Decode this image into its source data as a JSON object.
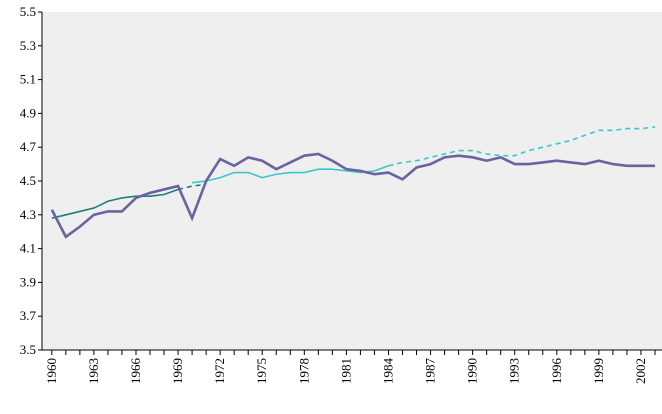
{
  "chart_data": {
    "type": "line",
    "x": [
      1960,
      1961,
      1962,
      1963,
      1964,
      1965,
      1966,
      1967,
      1968,
      1969,
      1970,
      1971,
      1972,
      1973,
      1974,
      1975,
      1976,
      1977,
      1978,
      1979,
      1980,
      1981,
      1982,
      1983,
      1984,
      1985,
      1986,
      1987,
      1988,
      1989,
      1990,
      1991,
      1992,
      1993,
      1994,
      1995,
      1996,
      1997,
      1998,
      1999,
      2000,
      2001,
      2002,
      2003
    ],
    "series": [
      {
        "color": "#1a7f7a",
        "dashed": false,
        "width": 1.6,
        "values": [
          4.28,
          4.3,
          4.32,
          4.34,
          4.38,
          4.4,
          4.41,
          4.41,
          4.42,
          4.45,
          null,
          null,
          null,
          null,
          null,
          null,
          null,
          null,
          null,
          null,
          null,
          null,
          null,
          null,
          null,
          null,
          null,
          null,
          null,
          null,
          null,
          null,
          null,
          null,
          null,
          null,
          null,
          null,
          null,
          null,
          null,
          null,
          null,
          null
        ]
      },
      {
        "color": "#1a7f7a",
        "dashed": true,
        "width": 1.6,
        "values": [
          null,
          null,
          null,
          null,
          null,
          null,
          null,
          null,
          null,
          4.45,
          4.47,
          4.48,
          null,
          null,
          null,
          null,
          null,
          null,
          null,
          null,
          null,
          null,
          null,
          null,
          null,
          null,
          null,
          null,
          null,
          null,
          null,
          null,
          null,
          null,
          null,
          null,
          null,
          null,
          null,
          null,
          null,
          null,
          null,
          null
        ]
      },
      {
        "color": "#3cc8c8",
        "dashed": false,
        "width": 1.6,
        "values": [
          null,
          null,
          null,
          null,
          null,
          null,
          null,
          null,
          null,
          null,
          4.49,
          4.5,
          4.52,
          4.55,
          4.55,
          4.52,
          4.54,
          4.55,
          4.55,
          4.57,
          4.57,
          4.56,
          4.55,
          4.56,
          4.59,
          null,
          null,
          null,
          null,
          null,
          null,
          null,
          null,
          null,
          null,
          null,
          null,
          null,
          null,
          null,
          null,
          null,
          null,
          null
        ]
      },
      {
        "color": "#3cc8c8",
        "dashed": true,
        "width": 1.6,
        "values": [
          null,
          null,
          null,
          null,
          null,
          null,
          null,
          null,
          null,
          null,
          null,
          null,
          null,
          null,
          null,
          null,
          null,
          null,
          null,
          null,
          null,
          null,
          null,
          null,
          4.59,
          4.61,
          4.62,
          4.64,
          4.66,
          4.68,
          4.68,
          4.66,
          4.65,
          4.65,
          4.68,
          4.7,
          4.72,
          4.74,
          4.77,
          4.8,
          4.8,
          4.81,
          4.81,
          4.82
        ]
      },
      {
        "color": "#6a63a0",
        "dashed": false,
        "width": 2.6,
        "values": [
          4.33,
          4.17,
          4.23,
          4.3,
          4.32,
          4.32,
          4.4,
          4.43,
          4.45,
          4.47,
          4.28,
          4.5,
          4.63,
          4.59,
          4.64,
          4.62,
          4.57,
          4.61,
          4.65,
          4.66,
          4.62,
          4.57,
          4.56,
          4.54,
          4.55,
          4.51,
          4.58,
          4.6,
          4.64,
          4.65,
          4.64,
          4.62,
          4.64,
          4.6,
          4.6,
          4.61,
          4.62,
          4.61,
          4.6,
          4.62,
          4.6,
          4.59,
          4.59,
          4.59
        ]
      }
    ],
    "xlim": [
      1959.3,
      2003.5
    ],
    "xticks": [
      1960,
      1963,
      1966,
      1969,
      1972,
      1975,
      1978,
      1981,
      1984,
      1987,
      1990,
      1993,
      1996,
      1999,
      2002
    ],
    "ylim": [
      3.5,
      5.5
    ],
    "yticks": [
      {
        "value": 3.5,
        "label": "3.5"
      },
      {
        "value": 3.7,
        "label": "3.7"
      },
      {
        "value": 3.9,
        "label": "3.9"
      },
      {
        "value": 4.1,
        "label": "4.1"
      },
      {
        "value": 4.3,
        "label": "4.3"
      },
      {
        "value": 4.5,
        "label": "4.5"
      },
      {
        "value": 4.7,
        "label": "4.7"
      },
      {
        "value": 4.9,
        "label": "4.9"
      },
      {
        "value": 5.1,
        "label": "5.1"
      },
      {
        "value": 5.3,
        "label": "5.3"
      },
      {
        "value": 5.5,
        "label": "5.5"
      }
    ],
    "plot_background": "#efefef"
  }
}
